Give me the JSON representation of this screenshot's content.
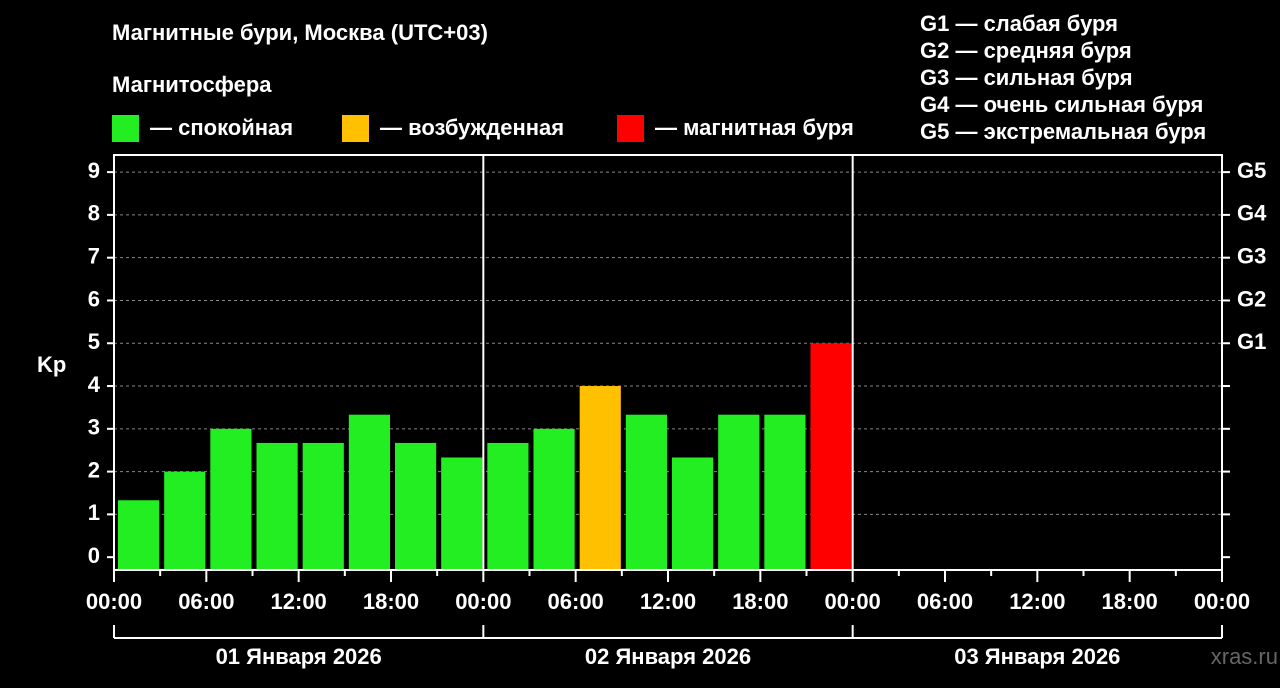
{
  "chart_data": {
    "type": "bar",
    "title": "Магнитные бури, Москва (UTC+03)",
    "subtitle": "Магнитосфера",
    "legend": [
      {
        "label": "— спокойная",
        "color": "#22ee22"
      },
      {
        "label": "— возбужденная",
        "color": "#ffc000"
      },
      {
        "label": "— магнитная буря",
        "color": "#ff0000"
      }
    ],
    "notes": [
      "G1 — слабая буря",
      "G2 — средняя буря",
      "G3 — сильная буря",
      "G4 — очень сильная буря",
      "G5 — экстремальная буря"
    ],
    "y_label": "Kp",
    "categories": [
      null,
      null,
      null,
      null,
      null,
      null,
      null,
      null,
      null,
      null,
      null,
      null,
      null,
      null,
      null,
      null,
      null,
      null,
      null,
      null,
      null,
      null,
      null,
      null
    ],
    "values": [
      1.33,
      2,
      3,
      2.67,
      2.67,
      3.33,
      2.67,
      2.33,
      2.67,
      3,
      4,
      3.33,
      2.33,
      3.33,
      3.33,
      5,
      null,
      null,
      null,
      null,
      null,
      null,
      null,
      null
    ],
    "colors": [
      "#22ee22",
      "#22ee22",
      "#22ee22",
      "#22ee22",
      "#22ee22",
      "#22ee22",
      "#22ee22",
      "#22ee22",
      "#22ee22",
      "#22ee22",
      "#ffc000",
      "#22ee22",
      "#22ee22",
      "#22ee22",
      "#22ee22",
      "#ff0000",
      null,
      null,
      null,
      null,
      null,
      null,
      null,
      null
    ],
    "ylim": [
      -0.3,
      9.4
    ],
    "yticks": [
      0,
      1,
      2,
      3,
      4,
      5,
      6,
      7,
      8,
      9
    ],
    "y2ticks": [
      {
        "value": 5,
        "label": "G1"
      },
      {
        "value": 6,
        "label": "G2"
      },
      {
        "value": 7,
        "label": "G3"
      },
      {
        "value": 8,
        "label": "G4"
      },
      {
        "value": 9,
        "label": "G5"
      }
    ],
    "xtick_labels": [
      "00:00",
      "06:00",
      "12:00",
      "18:00",
      "00:00",
      "06:00",
      "12:00",
      "18:00",
      "00:00",
      "06:00",
      "12:00",
      "18:00",
      "00:00"
    ],
    "days": [
      "01 Января 2026",
      "02 Января 2026",
      "03 Января 2026"
    ],
    "grid": true,
    "watermark": "xras.ru"
  }
}
